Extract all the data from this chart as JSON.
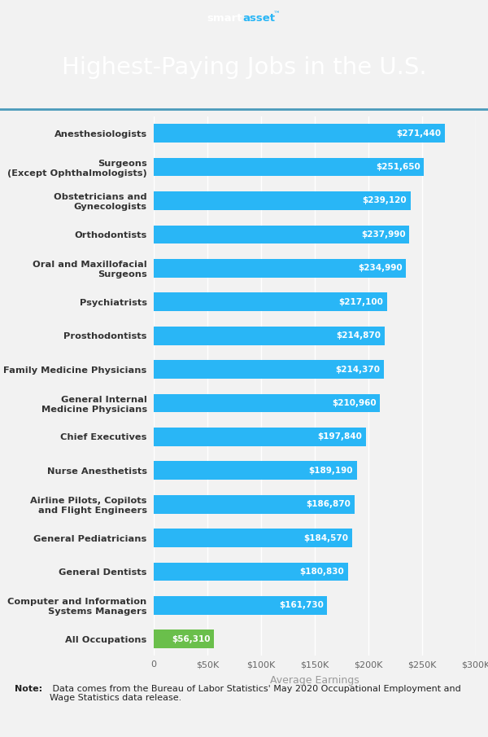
{
  "title": "Highest-Paying Jobs in the U.S.",
  "header_bg_color": "#1a5c7a",
  "chart_bg_color": "#f2f2f2",
  "footer_bg_color": "#efefef",
  "note_text_bold": "Note:",
  "note_text_regular": " Data comes from the Bureau of Labor Statistics' May 2020 Occupational Employment and Wage Statistics data release.",
  "xlabel": "Average Earnings",
  "categories": [
    "All Occupations",
    "Computer and Information\nSystems Managers",
    "General Dentists",
    "General Pediatricians",
    "Airline Pilots, Copilots\nand Flight Engineers",
    "Nurse Anesthetists",
    "Chief Executives",
    "General Internal\nMedicine Physicians",
    "Family Medicine Physicians",
    "Prosthodontists",
    "Psychiatrists",
    "Oral and Maxillofacial\nSurgeons",
    "Orthodontists",
    "Obstetricians and\nGynecologists",
    "Surgeons\n(Except Ophthalmologists)",
    "Anesthesiologists"
  ],
  "values": [
    56310,
    161730,
    180830,
    184570,
    186870,
    189190,
    197840,
    210960,
    214370,
    214870,
    217100,
    234990,
    237990,
    239120,
    251650,
    271440
  ],
  "bar_colors": [
    "#6abf4b",
    "#29b6f6",
    "#29b6f6",
    "#29b6f6",
    "#29b6f6",
    "#29b6f6",
    "#29b6f6",
    "#29b6f6",
    "#29b6f6",
    "#29b6f6",
    "#29b6f6",
    "#29b6f6",
    "#29b6f6",
    "#29b6f6",
    "#29b6f6",
    "#29b6f6"
  ],
  "value_labels": [
    "$56,310",
    "$161,730",
    "$180,830",
    "$184,570",
    "$186,870",
    "$189,190",
    "$197,840",
    "$210,960",
    "$214,370",
    "$214,870",
    "$217,100",
    "$234,990",
    "$237,990",
    "$239,120",
    "$251,650",
    "$271,440"
  ],
  "xlim": [
    0,
    300000
  ],
  "xticks": [
    0,
    50000,
    100000,
    150000,
    200000,
    250000,
    300000
  ],
  "xtick_labels": [
    "0",
    "$50K",
    "$100K",
    "$150K",
    "$200K",
    "$250K",
    "$300K"
  ]
}
